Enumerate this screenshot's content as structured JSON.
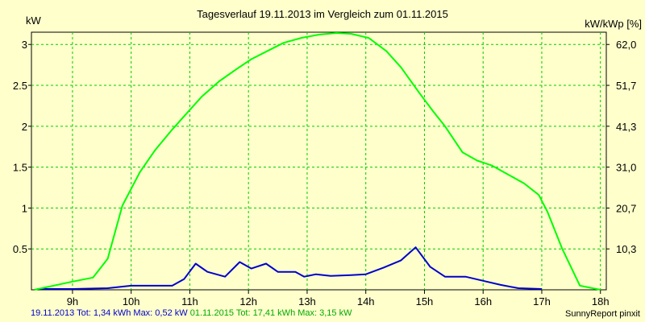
{
  "chart_data": {
    "type": "line",
    "title": "Tagesverlauf 19.11.2013 im Vergleich zum 01.11.2015",
    "ylabel_left": "kW",
    "ylabel_right": "kW/kWp [%]",
    "xlim": [
      8.3,
      18.1
    ],
    "ylim": [
      0,
      3.15
    ],
    "x_ticks": [
      "9h",
      "10h",
      "11h",
      "12h",
      "13h",
      "14h",
      "15h",
      "16h",
      "17h",
      "18h"
    ],
    "y_ticks_left": [
      "0.5",
      "1",
      "1.5",
      "2",
      "2.5",
      "3"
    ],
    "y_ticks_right": [
      "10,3",
      "20,7",
      "31,0",
      "41,3",
      "51,7",
      "62,0"
    ],
    "grid": true,
    "series": [
      {
        "name": "19.11.2013",
        "color": "#0000cc",
        "x": [
          8.4,
          9.0,
          9.6,
          10.0,
          10.4,
          10.7,
          10.9,
          11.1,
          11.3,
          11.6,
          11.85,
          12.05,
          12.3,
          12.5,
          12.8,
          12.95,
          13.15,
          13.4,
          13.75,
          14.0,
          14.3,
          14.6,
          14.85,
          15.1,
          15.35,
          15.7,
          16.0,
          16.3,
          16.6,
          17.0
        ],
        "values": [
          0.01,
          0.01,
          0.02,
          0.05,
          0.05,
          0.05,
          0.13,
          0.32,
          0.22,
          0.16,
          0.34,
          0.26,
          0.32,
          0.22,
          0.22,
          0.16,
          0.19,
          0.17,
          0.18,
          0.19,
          0.27,
          0.36,
          0.52,
          0.28,
          0.16,
          0.16,
          0.11,
          0.06,
          0.02,
          0.01
        ]
      },
      {
        "name": "01.11.2015",
        "color": "#00ff00",
        "x": [
          8.35,
          9.0,
          9.35,
          9.6,
          9.85,
          10.15,
          10.4,
          10.7,
          10.95,
          11.2,
          11.5,
          11.8,
          12.05,
          12.35,
          12.6,
          12.9,
          13.2,
          13.5,
          13.75,
          14.05,
          14.35,
          14.6,
          14.9,
          15.15,
          15.35,
          15.65,
          15.9,
          16.15,
          16.4,
          16.7,
          16.95,
          17.1,
          17.35,
          17.65,
          18.0
        ],
        "values": [
          0.0,
          0.1,
          0.15,
          0.38,
          1.03,
          1.44,
          1.7,
          1.96,
          2.16,
          2.36,
          2.55,
          2.7,
          2.82,
          2.93,
          3.02,
          3.08,
          3.12,
          3.14,
          3.13,
          3.08,
          2.92,
          2.72,
          2.42,
          2.18,
          2.0,
          1.68,
          1.58,
          1.52,
          1.42,
          1.3,
          1.16,
          0.95,
          0.5,
          0.05,
          0.0
        ]
      }
    ]
  },
  "footer": {
    "series1_summary": "19.11.2013 Tot: 1,34 kWh Max: 0,52 kW",
    "series2_summary": "01.11.2015 Tot: 17,41 kWh Max: 3,15 kW",
    "credit": "SunnyReport pinxit"
  }
}
